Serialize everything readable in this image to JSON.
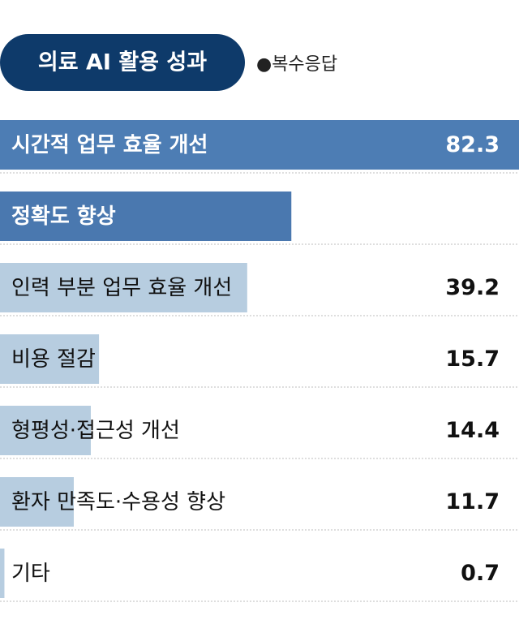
{
  "chart_data": {
    "type": "bar",
    "orientation": "horizontal",
    "title": "의료 AI 활용 성과",
    "subtitle": "●복수응답",
    "categories": [
      "시간적 업무 효율 개선",
      "정확도 향상",
      "인력 부분 업무 효율 개선",
      "비용 절감",
      "형평성·접근성 개선",
      "환자 만족도·수용성 향상",
      "기타"
    ],
    "values": [
      82.3,
      46.2,
      39.2,
      15.7,
      14.4,
      11.7,
      0.7
    ],
    "colors": [
      "#4d7db4",
      "#4a78af",
      "#b7cde0",
      "#b7cde0",
      "#b7cde0",
      "#b7cde0",
      "#b7cde0"
    ]
  }
}
